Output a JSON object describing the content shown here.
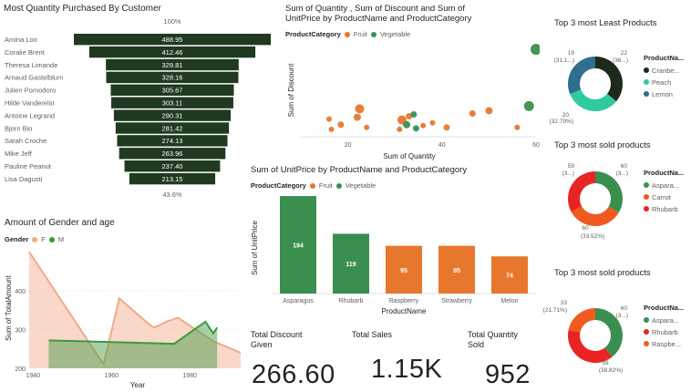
{
  "colors": {
    "funnel": "#1f3a1f",
    "fruit": "#e8772e",
    "vegetable": "#3a8f4f",
    "gender_f": "#f2a98a",
    "gender_m": "#3a9a3e",
    "donut_dark": "#1b2a1b",
    "donut_teal": "#2fcba0",
    "donut_blue": "#2f6e8e",
    "donut_green": "#3a8f4f",
    "donut_orange": "#f05a1e",
    "donut_red": "#e82424"
  },
  "funnel": {
    "title": "Most Quantity Purchased By Customer",
    "top_pct": "100%",
    "bottom_pct": "43.6%",
    "customers": [
      "Amina Loo",
      "Coralie Brent",
      "Theresa Limande",
      "Arnaud Gastelblum",
      "Julien Pomodoro",
      "Hilde Vanderelst",
      "Antoine Legrand",
      "Bjorn Bio",
      "Sarah Croche",
      "Mike Jeff",
      "Pauline Peanut",
      "Lisa Dagusti"
    ],
    "values": [
      488.95,
      412.46,
      329.81,
      328.16,
      305.67,
      303.11,
      290.31,
      281.42,
      274.13,
      263.96,
      237.4,
      213.15
    ],
    "labels": [
      "488.95",
      "412.46",
      "329.81",
      "328.16",
      "305.67",
      "303.11",
      "290.31",
      "281.42",
      "274.13",
      "263.96",
      "237.40",
      "213.15"
    ]
  },
  "scatter": {
    "title_line1": "Sum of Quantity , Sum of Discount and Sum of",
    "title_line2": "UnitPrice by ProductName and ProductCategory",
    "legend_title": "ProductCategory",
    "legend_items": [
      "Fruit",
      "Vegetable"
    ],
    "xlabel": "Sum of Quantity",
    "ylabel": "Sum of Discount",
    "x_ticks": [
      "20",
      "40",
      "60"
    ],
    "xlim": [
      10,
      60
    ],
    "ylim": [
      0,
      10
    ],
    "points": [
      {
        "cat": "Vegetable",
        "x": 60,
        "y": 9.4,
        "r": 6
      },
      {
        "cat": "Vegetable",
        "x": 58.5,
        "y": 3.3,
        "r": 5.5
      },
      {
        "cat": "Fruit",
        "x": 16,
        "y": 1.9,
        "r": 3
      },
      {
        "cat": "Fruit",
        "x": 16.5,
        "y": 0.8,
        "r": 3
      },
      {
        "cat": "Fruit",
        "x": 18.5,
        "y": 1.3,
        "r": 3.5
      },
      {
        "cat": "Fruit",
        "x": 22,
        "y": 2.1,
        "r": 4
      },
      {
        "cat": "Fruit",
        "x": 22.5,
        "y": 3.0,
        "r": 5
      },
      {
        "cat": "Fruit",
        "x": 24,
        "y": 1.0,
        "r": 3
      },
      {
        "cat": "Fruit",
        "x": 31,
        "y": 0.8,
        "r": 3
      },
      {
        "cat": "Fruit",
        "x": 31.5,
        "y": 1.8,
        "r": 5
      },
      {
        "cat": "Vegetable",
        "x": 32.5,
        "y": 1.3,
        "r": 4
      },
      {
        "cat": "Fruit",
        "x": 33,
        "y": 2.2,
        "r": 3.5
      },
      {
        "cat": "Vegetable",
        "x": 34,
        "y": 2.4,
        "r": 3.5
      },
      {
        "cat": "Vegetable",
        "x": 34.5,
        "y": 0.9,
        "r": 3.5
      },
      {
        "cat": "Fruit",
        "x": 36,
        "y": 1.2,
        "r": 3
      },
      {
        "cat": "Fruit",
        "x": 38,
        "y": 1.5,
        "r": 3
      },
      {
        "cat": "Fruit",
        "x": 41,
        "y": 1.0,
        "r": 3.5
      },
      {
        "cat": "Fruit",
        "x": 46.5,
        "y": 2.5,
        "r": 3.5
      },
      {
        "cat": "Fruit",
        "x": 50,
        "y": 2.8,
        "r": 4
      },
      {
        "cat": "Fruit",
        "x": 56,
        "y": 1.0,
        "r": 3
      }
    ]
  },
  "gender": {
    "title": "Amount of Gender and age",
    "legend_title": "Gender",
    "legend_items": [
      "F",
      "M"
    ],
    "xlabel": "Year",
    "ylabel": "Sum of TotalAmount",
    "x_ticks": [
      "1940",
      "1960",
      "1980"
    ],
    "y_ticks": [
      "200",
      "300",
      "400"
    ],
    "xlim": [
      1939,
      1993
    ],
    "ylim": [
      200,
      510
    ],
    "series_f": {
      "x": [
        1939,
        1958,
        1962,
        1970,
        1971,
        1974,
        1977,
        1986,
        1993
      ],
      "y": [
        500,
        210,
        380,
        310,
        305,
        320,
        330,
        270,
        240
      ]
    },
    "series_m": {
      "x": [
        1944,
        1976,
        1984,
        1986,
        1987
      ],
      "y": [
        272,
        263,
        320,
        290,
        305
      ]
    }
  },
  "unitprice": {
    "title": "Sum of UnitPrice by ProductName and ProductCategory",
    "legend_title": "ProductCategory",
    "legend_items": [
      "Fruit",
      "Vegetable"
    ],
    "xlabel": "ProductName",
    "ylabel": "Sum of UnitPrice",
    "categories": [
      "Asparagus",
      "Rhubarb",
      "Raspberry",
      "Strawberry",
      "Melon"
    ],
    "values": [
      194,
      119,
      95,
      95,
      74
    ],
    "cats": [
      "Vegetable",
      "Vegetable",
      "Fruit",
      "Fruit",
      "Fruit"
    ],
    "ylim": [
      0,
      200
    ]
  },
  "cards": {
    "discount_label_1": "Total Discount",
    "discount_label_2": "Given",
    "discount_value": "266.60",
    "sales_label": "Total Sales",
    "sales_value": "1.15K",
    "quantity_label_1": "Total Quantity",
    "quantity_label_2": "Sold",
    "quantity_value": "952"
  },
  "donuts": [
    {
      "title": "Top 3 most Least Products",
      "legend_title": "ProductNa...",
      "items": [
        {
          "name": "Cranbe...",
          "value": 22,
          "color": "#1b2a1b"
        },
        {
          "name": "Peach",
          "value": 20,
          "color": "#2fcba0"
        },
        {
          "name": "Lemon",
          "value": 19,
          "color": "#2f6e8e"
        }
      ],
      "labels": [
        {
          "text": "22",
          "anchor": "right-top"
        },
        {
          "text": "(36...)",
          "anchor": "right-top2"
        },
        {
          "text": "20",
          "anchor": "left-bottom"
        },
        {
          "text": "(32.79%)",
          "anchor": "left-bottom2"
        },
        {
          "text": "19",
          "anchor": "left-top"
        },
        {
          "text": "(31.1...)",
          "anchor": "left-top2"
        }
      ]
    },
    {
      "title": "Top 3 most sold products",
      "legend_title": "ProductNa...",
      "items": [
        {
          "name": "Aspara...",
          "value": 60,
          "color": "#3a8f4f"
        },
        {
          "name": "Carrot",
          "value": 60,
          "color": "#f05a1e"
        },
        {
          "name": "Rhubarb",
          "value": 59,
          "color": "#e82424"
        }
      ],
      "labels": [
        {
          "text": "60",
          "anchor": "right-top"
        },
        {
          "text": "(3...)",
          "anchor": "right-top2"
        },
        {
          "text": "60",
          "anchor": "bottom"
        },
        {
          "text": "(33.52%)",
          "anchor": "bottom2"
        },
        {
          "text": "59",
          "anchor": "left-top"
        },
        {
          "text": "(3...)",
          "anchor": "left-top2"
        }
      ]
    },
    {
      "title": "Top 3 most sold products",
      "legend_title": "ProductNa...",
      "items": [
        {
          "name": "Aspara...",
          "value": 60,
          "color": "#3a8f4f"
        },
        {
          "name": "Rhubarb",
          "value": 59,
          "color": "#e82424"
        },
        {
          "name": "Raspbe...",
          "value": 33,
          "color": "#f05a1e"
        }
      ],
      "labels": [
        {
          "text": "60",
          "anchor": "right-top"
        },
        {
          "text": "(3...)",
          "anchor": "right-top2"
        },
        {
          "text": "59",
          "anchor": "bottom"
        },
        {
          "text": "(38.82%)",
          "anchor": "bottom2"
        },
        {
          "text": "33",
          "anchor": "left-top"
        },
        {
          "text": "(21.71%)",
          "anchor": "left-top2"
        }
      ]
    }
  ],
  "chart_data": [
    {
      "type": "bar",
      "title": "Most Quantity Purchased By Customer",
      "categories": [
        "Amina Loo",
        "Coralie Brent",
        "Theresa Limande",
        "Arnaud Gastelblum",
        "Julien Pomodoro",
        "Hilde Vanderelst",
        "Antoine Legrand",
        "Bjorn Bio",
        "Sarah Croche",
        "Mike Jeff",
        "Pauline Peanut",
        "Lisa Dagusti"
      ],
      "values": [
        488.95,
        412.46,
        329.81,
        328.16,
        305.67,
        303.11,
        290.31,
        281.42,
        274.13,
        263.96,
        237.4,
        213.15
      ]
    },
    {
      "type": "scatter",
      "title": "Sum of Quantity , Sum of Discount and Sum of UnitPrice by ProductName and ProductCategory",
      "xlabel": "Sum of Quantity",
      "ylabel": "Sum of Discount",
      "series": [
        {
          "name": "Fruit"
        },
        {
          "name": "Vegetable"
        }
      ]
    },
    {
      "type": "area",
      "title": "Amount of Gender and age",
      "xlabel": "Year",
      "ylabel": "Sum of TotalAmount",
      "series": [
        {
          "name": "F",
          "x": [
            1939,
            1958,
            1962,
            1970,
            1971,
            1974,
            1977,
            1986,
            1993
          ],
          "values": [
            500,
            210,
            380,
            310,
            305,
            320,
            330,
            270,
            240
          ]
        },
        {
          "name": "M",
          "x": [
            1944,
            1976,
            1984,
            1986,
            1987
          ],
          "values": [
            272,
            263,
            320,
            290,
            305
          ]
        }
      ]
    },
    {
      "type": "bar",
      "title": "Sum of UnitPrice by ProductName and ProductCategory",
      "xlabel": "ProductName",
      "ylabel": "Sum of UnitPrice",
      "categories": [
        "Asparagus",
        "Rhubarb",
        "Raspberry",
        "Strawberry",
        "Melon"
      ],
      "values": [
        194,
        119,
        95,
        95,
        74
      ]
    },
    {
      "type": "pie",
      "title": "Top 3 most Least Products",
      "categories": [
        "Cranbe...",
        "Peach",
        "Lemon"
      ],
      "values": [
        22,
        20,
        19
      ]
    },
    {
      "type": "pie",
      "title": "Top 3 most sold products",
      "categories": [
        "Aspara...",
        "Carrot",
        "Rhubarb"
      ],
      "values": [
        60,
        60,
        59
      ]
    },
    {
      "type": "pie",
      "title": "Top 3 most sold products",
      "categories": [
        "Aspara...",
        "Rhubarb",
        "Raspbe..."
      ],
      "values": [
        60,
        59,
        33
      ]
    }
  ]
}
